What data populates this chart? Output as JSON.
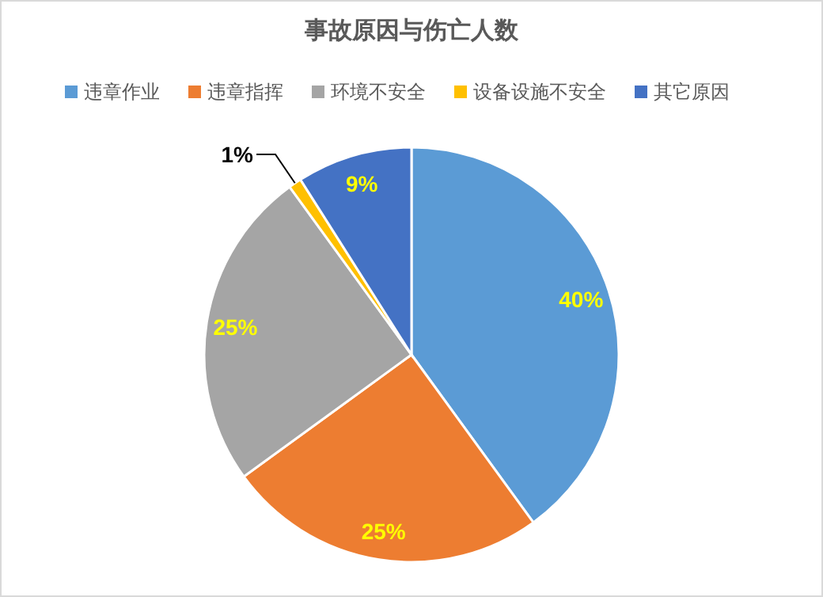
{
  "chart_data": {
    "type": "pie",
    "title": "事故原因与伤亡人数",
    "categories": [
      "违章作业",
      "违章指挥",
      "环境不安全",
      "设备设施不安全",
      "其它原因"
    ],
    "values": [
      40,
      25,
      25,
      1,
      9
    ],
    "value_labels": [
      "40%",
      "25%",
      "25%",
      "1%",
      "9%"
    ],
    "colors": [
      "#5b9bd5",
      "#ed7d31",
      "#a5a5a5",
      "#ffc000",
      "#4472c4"
    ],
    "legend": "top"
  }
}
